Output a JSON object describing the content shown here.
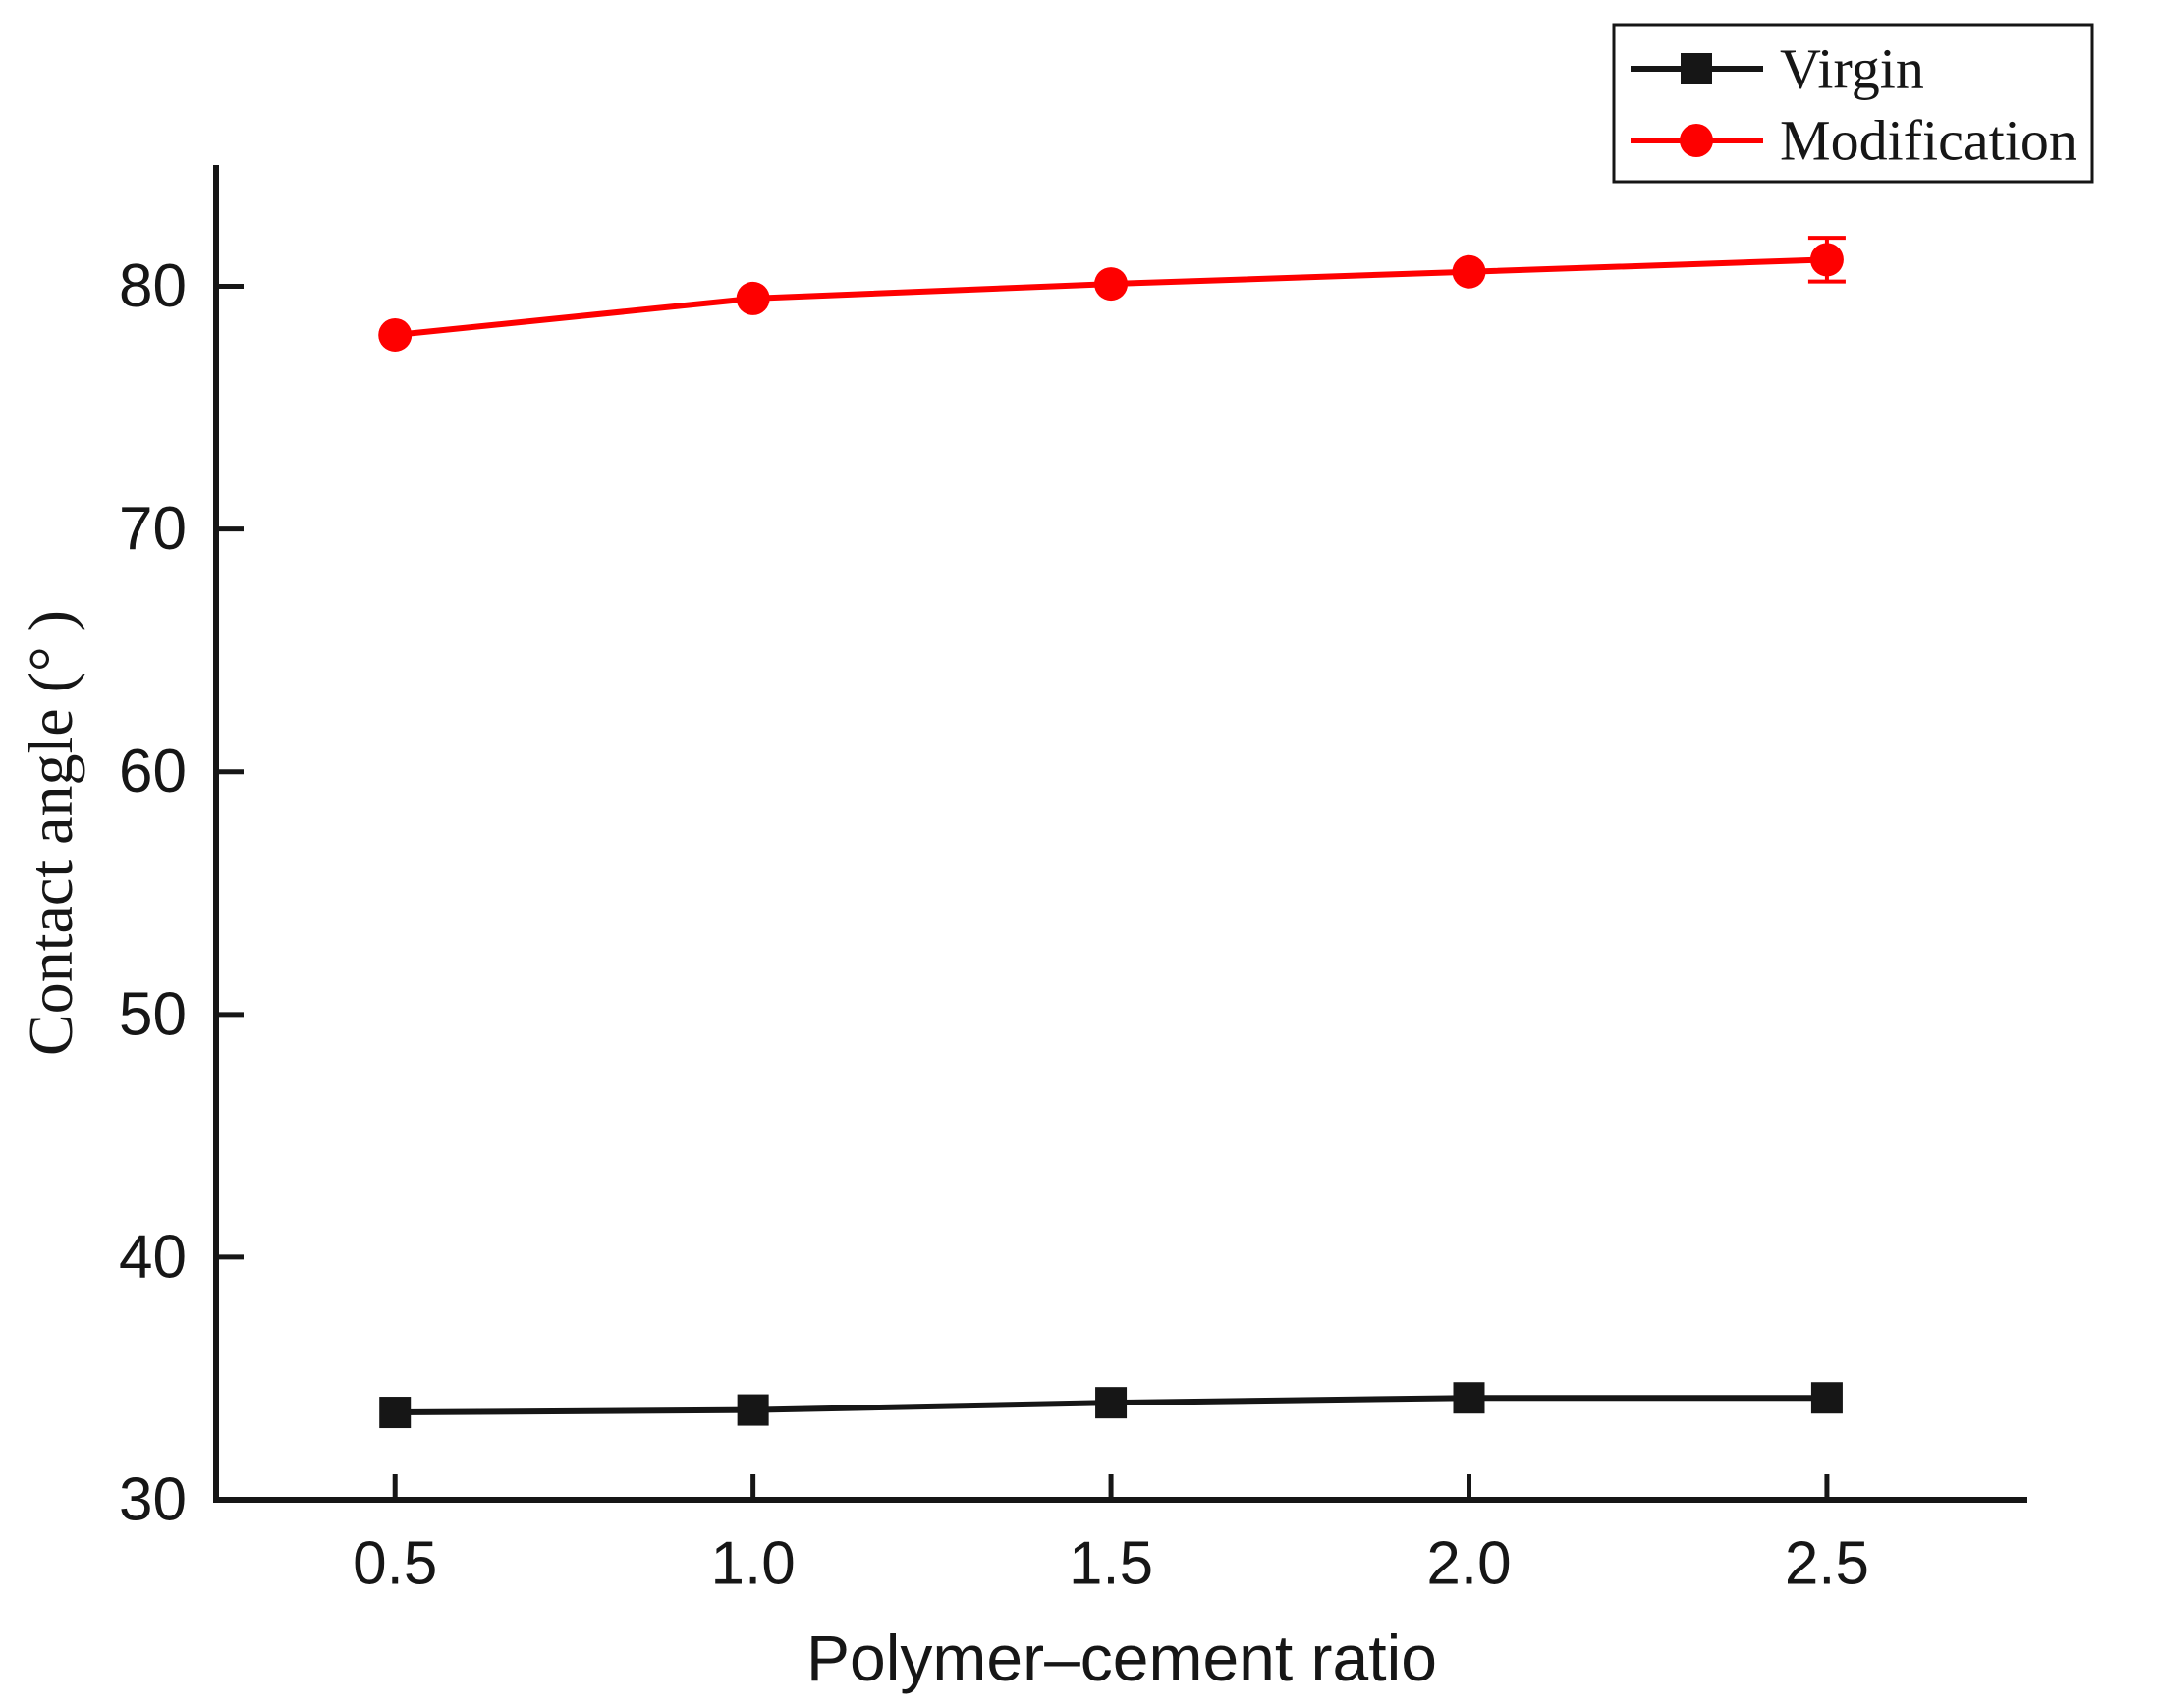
{
  "chart_data": {
    "type": "line",
    "title": "",
    "xlabel": "Polymer–cement ratio",
    "ylabel": "Contact angle (° )",
    "x": [
      0.5,
      1.0,
      1.5,
      2.0,
      2.5
    ],
    "x_tick_labels": [
      "0.5",
      "1.0",
      "1.5",
      "2.0",
      "2.5"
    ],
    "y_ticks": [
      30,
      40,
      50,
      60,
      70,
      80
    ],
    "y_tick_labels": [
      "30",
      "40",
      "50",
      "60",
      "70",
      "80"
    ],
    "xlim": [
      0.25,
      2.78
    ],
    "ylim": [
      30,
      85
    ],
    "grid": false,
    "legend_position": "top-right",
    "series": [
      {
        "name": "Virgin",
        "color": "#161616",
        "marker": "square",
        "values": [
          33.6,
          33.7,
          34.0,
          34.2,
          34.2
        ],
        "errors": [
          null,
          null,
          null,
          null,
          null
        ]
      },
      {
        "name": "Modification",
        "color": "#fe0000",
        "marker": "circle",
        "values": [
          78.0,
          79.5,
          80.1,
          80.6,
          81.1
        ],
        "errors": [
          null,
          null,
          null,
          null,
          0.9
        ]
      }
    ]
  },
  "colors": {
    "axis": "#161616",
    "virgin": "#161616",
    "modification": "#fe0000",
    "background": "#ffffff"
  }
}
